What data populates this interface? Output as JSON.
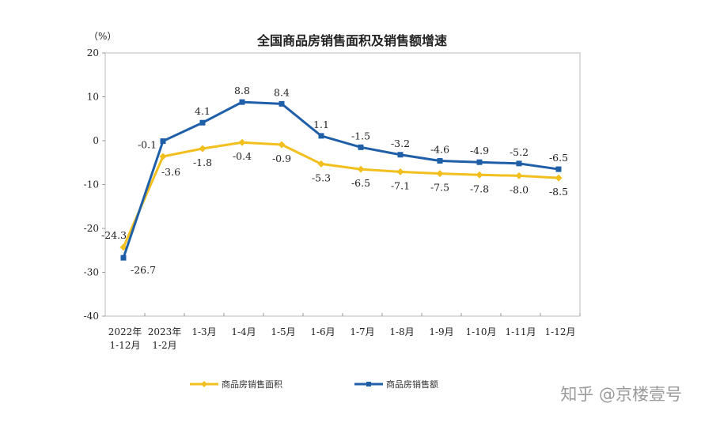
{
  "chart_data": {
    "type": "line",
    "title": "全国商品房销售面积及销售额增速",
    "ylabel": "（%）",
    "xlabel": "",
    "ylim": [
      -40,
      20
    ],
    "yticks": [
      20,
      10,
      0,
      -10,
      -20,
      -30,
      -40
    ],
    "grid": false,
    "categories": [
      [
        "2022年",
        "1-12月"
      ],
      [
        "2023年",
        "1-2月"
      ],
      [
        "1-3月"
      ],
      [
        "1-4月"
      ],
      [
        "1-5月"
      ],
      [
        "1-6月"
      ],
      [
        "1-7月"
      ],
      [
        "1-8月"
      ],
      [
        "1-9月"
      ],
      [
        "1-10月"
      ],
      [
        "1-11月"
      ],
      [
        "1-12月"
      ]
    ],
    "series": [
      {
        "name": "商品房销售面积",
        "color": "#f2c01e",
        "marker": "diamond",
        "values": [
          -24.3,
          -3.6,
          -1.8,
          -0.4,
          -0.9,
          -5.3,
          -6.5,
          -7.1,
          -7.5,
          -7.8,
          -8.0,
          -8.5
        ]
      },
      {
        "name": "商品房销售额",
        "color": "#1f5fa8",
        "marker": "square",
        "values": [
          -26.7,
          -0.1,
          4.1,
          8.8,
          8.4,
          1.1,
          -1.5,
          -3.2,
          -4.6,
          -4.9,
          -5.2,
          -6.5
        ]
      }
    ],
    "legend_position": "bottom"
  },
  "watermark": "知乎 @京楼壹号"
}
